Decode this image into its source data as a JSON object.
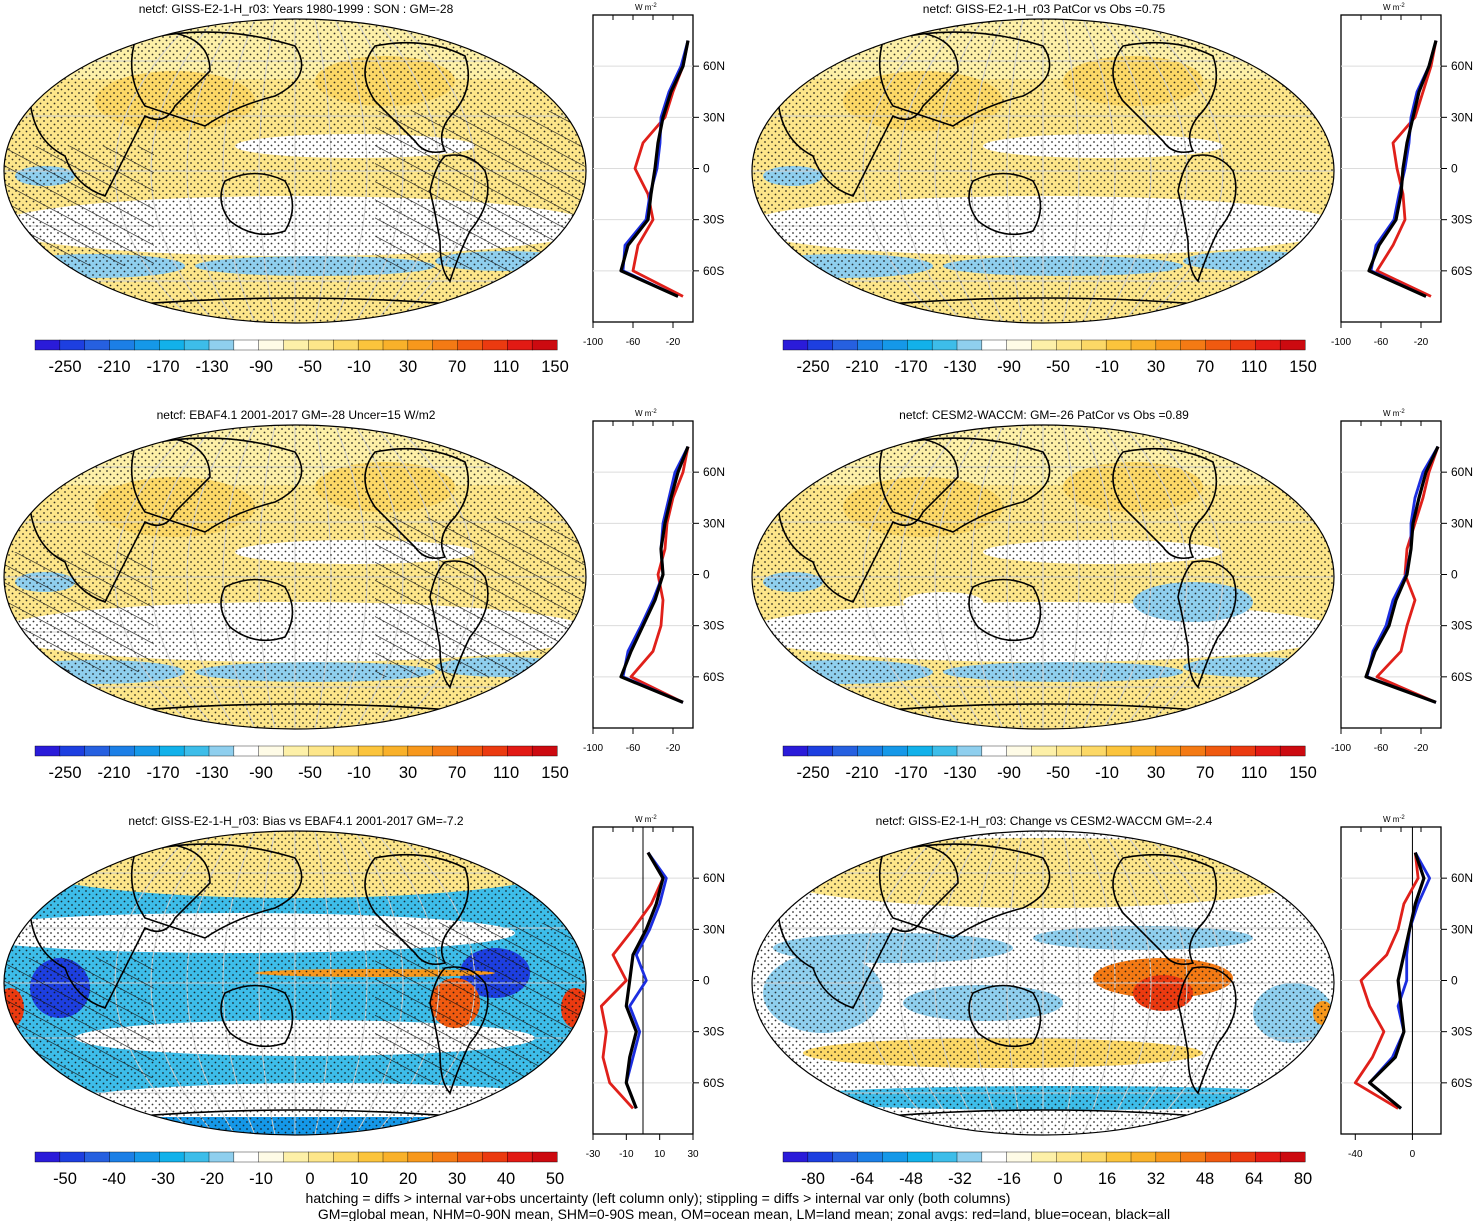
{
  "colors": {
    "neg": [
      "#2a1bd9",
      "#1d3fe0",
      "#2660e0",
      "#1c7fe6",
      "#1598e8",
      "#12b1ea",
      "#3dbde9",
      "#8fcfee"
    ],
    "neutral": [
      "#ffffff",
      "#fefbe6"
    ],
    "pos": [
      "#fdf0a8",
      "#fde68a",
      "#fcd866",
      "#fbc43c",
      "#f9b12a",
      "#f7981c",
      "#f47a14",
      "#f05a10",
      "#eb3a10",
      "#e21a14",
      "#cc0a10"
    ],
    "land": "#e0201a",
    "ocean": "#1c2ee0",
    "all": "#000000"
  },
  "panels": [
    {
      "title": "netcf: GISS-E2-1-H_r03: Years 1980-1999 : SON : GM=-28",
      "bias": false,
      "hatch": true,
      "variant": 0
    },
    {
      "title": "netcf: GISS-E2-1-H_r03 PatCor vs Obs =0.75",
      "bias": false,
      "hatch": false,
      "variant": 1
    },
    {
      "title": "netcf: EBAF4.1 2001-2017 GM=-28 Uncer=15 W/m2",
      "bias": false,
      "hatch": true,
      "variant": 2
    },
    {
      "title": "netcf: CESM2-WACCM: GM=-26 PatCor vs Obs =0.89",
      "bias": false,
      "hatch": false,
      "variant": 3
    },
    {
      "title": "netcf: GISS-E2-1-H_r03: Bias vs EBAF4.1 2001-2017  GM=-7.2",
      "bias": true,
      "hatch": true,
      "variant": 4
    },
    {
      "title": "netcf: GISS-E2-1-H_r03: Change vs CESM2-WACCM GM=-2.4",
      "bias": true,
      "hatch": false,
      "variant": 5
    }
  ],
  "colorbars": [
    {
      "labels": [
        "-250",
        "-210",
        "-170",
        "-130",
        "-90",
        "-50",
        "-10",
        "30",
        "70",
        "110",
        "150"
      ]
    },
    {
      "labels": [
        "-250",
        "-210",
        "-170",
        "-130",
        "-90",
        "-50",
        "-10",
        "30",
        "70",
        "110",
        "150"
      ]
    },
    {
      "labels": [
        "-250",
        "-210",
        "-170",
        "-130",
        "-90",
        "-50",
        "-10",
        "30",
        "70",
        "110",
        "150"
      ]
    },
    {
      "labels": [
        "-250",
        "-210",
        "-170",
        "-130",
        "-90",
        "-50",
        "-10",
        "30",
        "70",
        "110",
        "150"
      ]
    },
    {
      "labels": [
        "-50",
        "-40",
        "-30",
        "-20",
        "-10",
        "0",
        "10",
        "20",
        "30",
        "40",
        "50"
      ]
    },
    {
      "labels": [
        "-80",
        "-64",
        "-48",
        "-32",
        "-16",
        "0",
        "16",
        "32",
        "48",
        "64",
        "80"
      ]
    }
  ],
  "zonal": {
    "unit_label": "W m",
    "unit_sup": "-2",
    "lat_labels": [
      "60N",
      "30N",
      "0",
      "30S",
      "60S"
    ],
    "xticks_clim": [
      "-100",
      "-60",
      "-20"
    ],
    "xticks_bias": [
      "-30",
      "-10",
      "10",
      "30"
    ],
    "xticks_change": [
      "-40",
      "0"
    ]
  },
  "chart_data": {
    "type": "heatmap",
    "description_of_panels": "Six global map panels of net cloud forcing (W m-2) with zonal-average side plots",
    "zonal_averages": {
      "lat": [
        75,
        60,
        45,
        30,
        15,
        0,
        -15,
        -30,
        -45,
        -60,
        -75
      ],
      "panel1": {
        "all": [
          -5,
          -10,
          -22,
          -30,
          -35,
          -38,
          -42,
          -45,
          -65,
          -72,
          -15
        ],
        "land": [
          -5,
          -10,
          -20,
          -28,
          -50,
          -58,
          -45,
          -40,
          -55,
          -60,
          -10
        ],
        "ocean": [
          -5,
          -12,
          -24,
          -32,
          -33,
          -36,
          -43,
          -47,
          -68,
          -70,
          -15
        ]
      },
      "panel2": {
        "all": [
          -5,
          -12,
          -22,
          -28,
          -34,
          -38,
          -40,
          -45,
          -62,
          -72,
          -15
        ],
        "land": [
          -5,
          -10,
          -18,
          -26,
          -48,
          -44,
          -38,
          -36,
          -48,
          -64,
          -10
        ],
        "ocean": [
          -5,
          -12,
          -24,
          -30,
          -32,
          -36,
          -42,
          -47,
          -65,
          -70,
          -15
        ]
      },
      "panel3": {
        "all": [
          -5,
          -15,
          -22,
          -28,
          -32,
          -30,
          -38,
          -50,
          -62,
          -72,
          -10
        ],
        "land": [
          -5,
          -10,
          -20,
          -26,
          -28,
          -35,
          -30,
          -32,
          -40,
          -62,
          -10
        ],
        "ocean": [
          -5,
          -18,
          -24,
          -30,
          -32,
          -30,
          -40,
          -52,
          -65,
          -70,
          -10
        ]
      },
      "panel4": {
        "all": [
          -3,
          -15,
          -22,
          -28,
          -30,
          -34,
          -45,
          -52,
          -66,
          -75,
          -5
        ],
        "land": [
          -3,
          -12,
          -18,
          -26,
          -34,
          -36,
          -26,
          -34,
          -40,
          -64,
          -5
        ],
        "ocean": [
          -3,
          -18,
          -26,
          -30,
          -30,
          -35,
          -48,
          -55,
          -68,
          -74,
          -5
        ]
      },
      "panel5": {
        "all": [
          3,
          12,
          8,
          2,
          -6,
          -8,
          -10,
          -4,
          -8,
          -10,
          -4
        ],
        "land": [
          3,
          12,
          5,
          -6,
          -18,
          -10,
          -25,
          -22,
          -24,
          -20,
          -6
        ],
        "ocean": [
          3,
          14,
          10,
          4,
          -4,
          2,
          -8,
          -2,
          -6,
          -10,
          -4
        ]
      },
      "panel6": {
        "all": [
          2,
          8,
          2,
          -2,
          -6,
          -10,
          -8,
          -6,
          -12,
          -30,
          -8
        ],
        "land": [
          2,
          4,
          -6,
          -10,
          -18,
          -36,
          -30,
          -20,
          -28,
          -40,
          -10
        ],
        "ocean": [
          2,
          12,
          4,
          -2,
          -4,
          -4,
          -10,
          -6,
          -14,
          -30,
          -8
        ]
      }
    }
  },
  "footer": {
    "line1": "hatching = diffs > internal var+obs uncertainty (left column only); stippling = diffs > internal var only (both columns)",
    "line2": "GM=global mean, NHM=0-90N mean, SHM=0-90S mean, OM=ocean mean, LM=land mean; zonal avgs: red=land, blue=ocean, black=all"
  }
}
